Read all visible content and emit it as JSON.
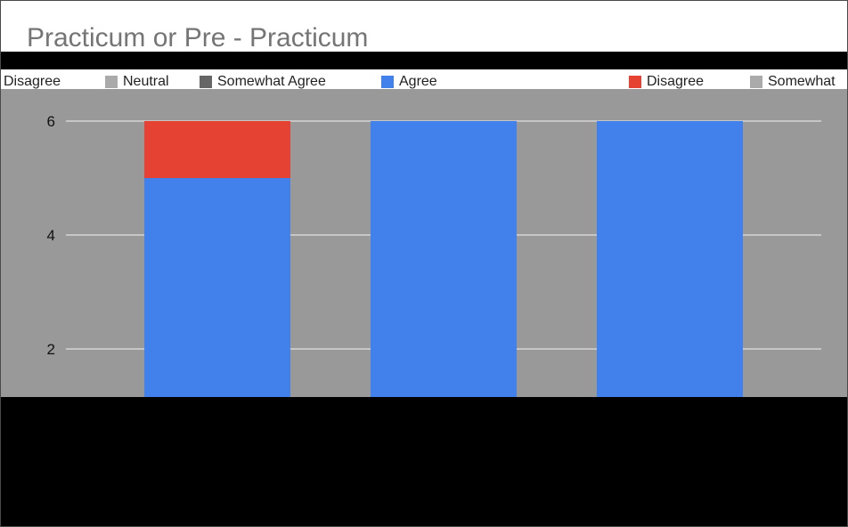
{
  "chart_data": {
    "type": "bar",
    "stacked": true,
    "title": "Practicum or Pre - Practicum",
    "categories": [
      "",
      "",
      ""
    ],
    "series": [
      {
        "name": "Agree",
        "color": "#4280ec",
        "values": [
          5,
          6,
          6
        ]
      },
      {
        "name": "Disagree",
        "color": "#e64233",
        "values": [
          1,
          0,
          0
        ]
      }
    ],
    "legend": {
      "placement": "top",
      "entries": [
        {
          "label": "Disagree",
          "color": "#e64233"
        },
        {
          "label": "Neutral",
          "color": "#aaaaaa"
        },
        {
          "label": "Somewhat Agree",
          "color": "#666666"
        },
        {
          "label": "Agree",
          "color": "#4280ec"
        },
        {
          "label": "Disagree",
          "color": "#e64233"
        },
        {
          "label": "Somewhat",
          "color": "#aaaaaa"
        }
      ]
    },
    "yticks": [
      "2",
      "4",
      "6"
    ],
    "ylim": [
      0,
      6
    ],
    "grid": true,
    "plot_background": "#999999"
  }
}
